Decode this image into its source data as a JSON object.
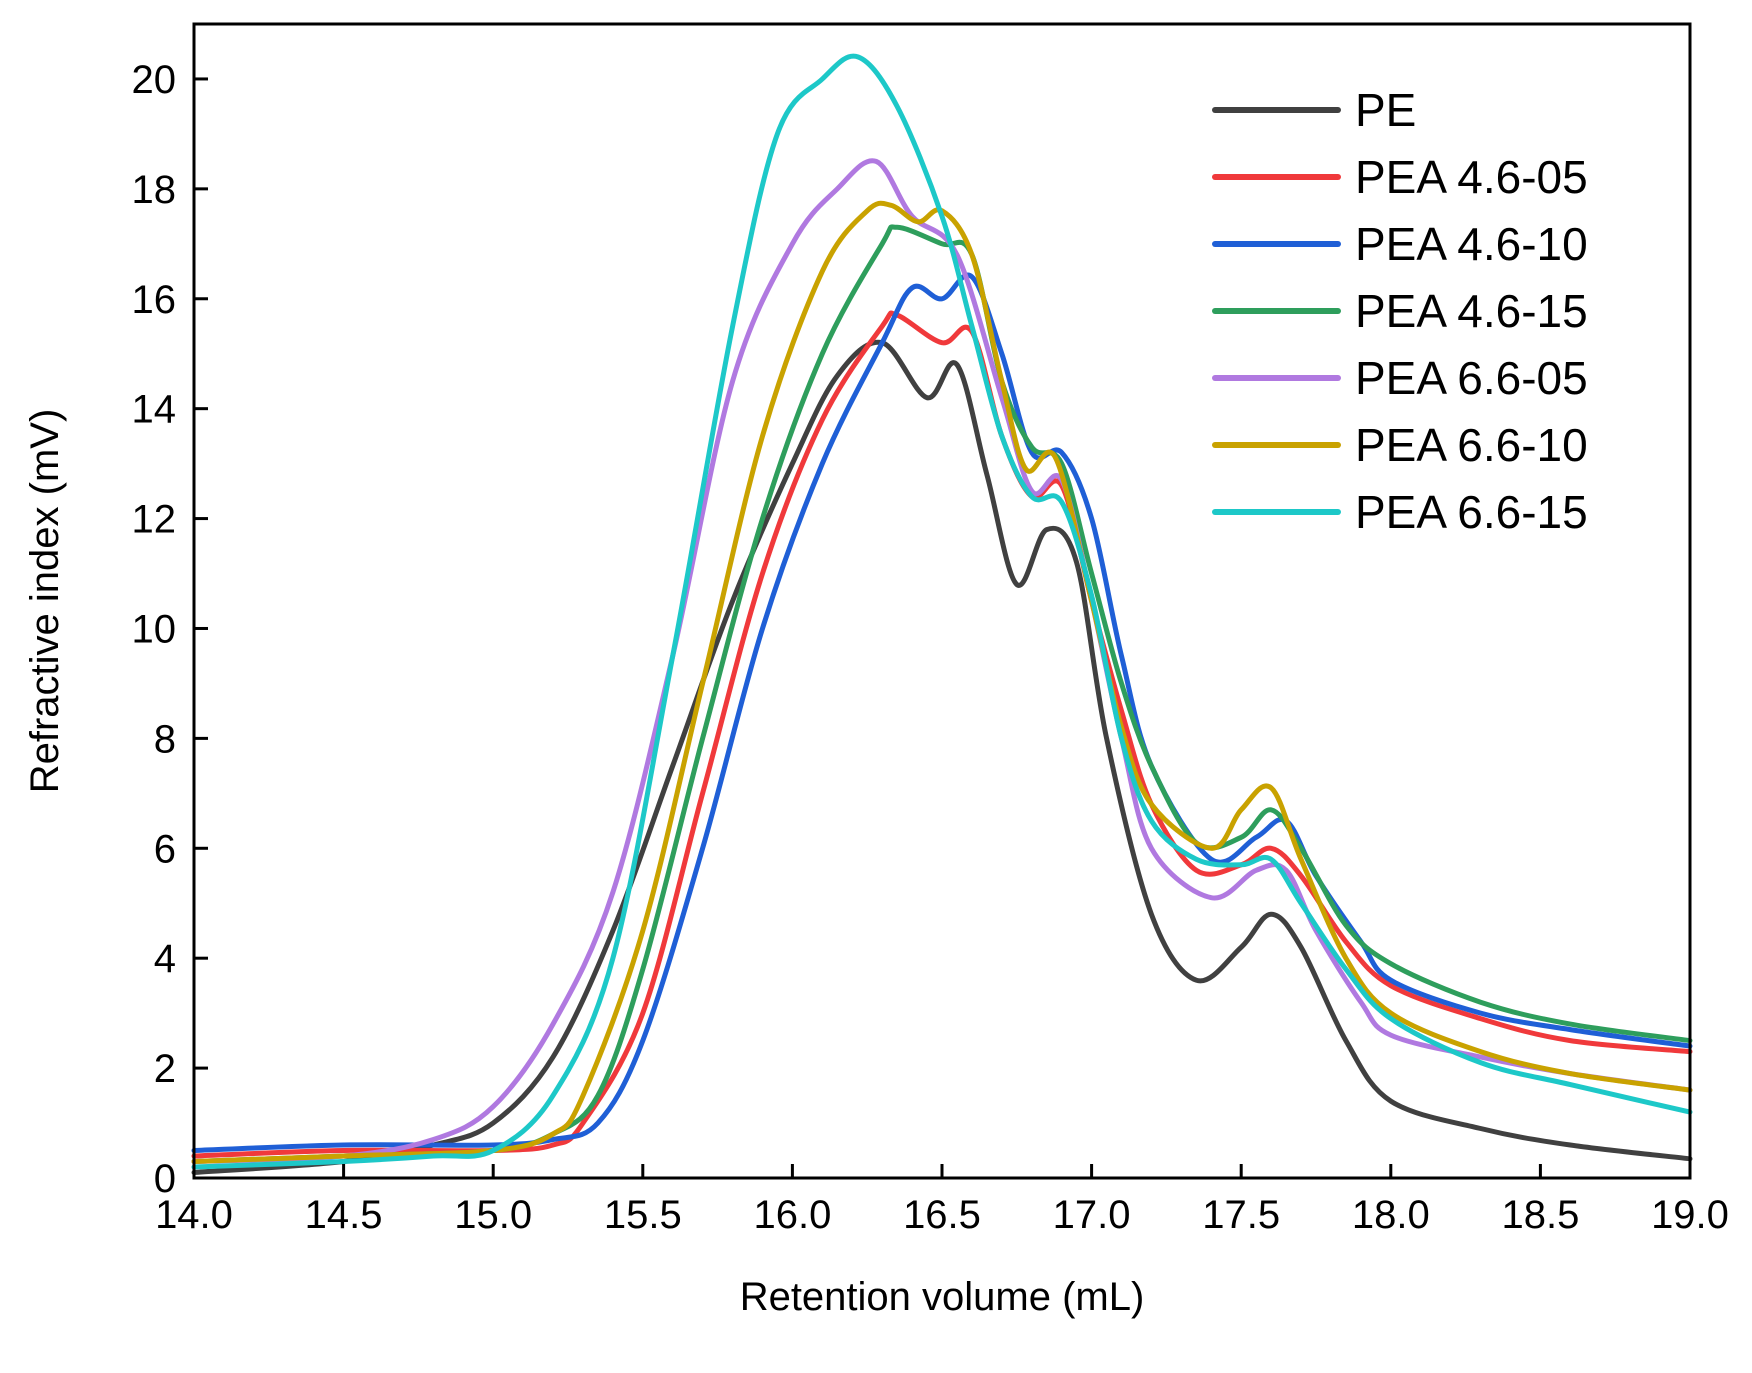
{
  "chart_data": {
    "type": "line",
    "title": "",
    "xlabel": "Retention volume (mL)",
    "ylabel": "Refractive index (mV)",
    "xlim": [
      14.0,
      19.0
    ],
    "ylim": [
      0,
      21
    ],
    "x_ticks": [
      14.0,
      14.5,
      15.0,
      15.5,
      16.0,
      16.5,
      17.0,
      17.5,
      18.0,
      18.5,
      19.0
    ],
    "x_tick_labels": [
      "14.0",
      "14.5",
      "15.0",
      "15.5",
      "16.0",
      "16.5",
      "17.0",
      "17.5",
      "18.0",
      "18.5",
      "19.0"
    ],
    "y_ticks": [
      0,
      2,
      4,
      6,
      8,
      10,
      12,
      14,
      16,
      18,
      20
    ],
    "y_tick_labels": [
      "0",
      "2",
      "4",
      "6",
      "8",
      "10",
      "12",
      "14",
      "16",
      "18",
      "20"
    ],
    "legend_position": "top-right",
    "grid": false,
    "series": [
      {
        "name": "PE",
        "color": "#404040",
        "x": [
          14.0,
          14.5,
          14.8,
          15.0,
          15.2,
          15.4,
          15.6,
          15.8,
          16.0,
          16.15,
          16.3,
          16.45,
          16.55,
          16.65,
          16.75,
          16.85,
          16.95,
          17.05,
          17.2,
          17.35,
          17.5,
          17.6,
          17.7,
          17.85,
          18.0,
          18.3,
          18.6,
          19.0
        ],
        "y": [
          0.1,
          0.3,
          0.6,
          1.0,
          2.2,
          4.5,
          7.5,
          10.5,
          13.0,
          14.6,
          15.2,
          14.2,
          14.8,
          12.8,
          10.8,
          11.8,
          11.2,
          8.0,
          4.8,
          3.6,
          4.2,
          4.8,
          4.2,
          2.5,
          1.4,
          0.9,
          0.6,
          0.35
        ]
      },
      {
        "name": "PEA 4.6-05",
        "color": "#f0393b",
        "x": [
          14.0,
          14.5,
          15.0,
          15.2,
          15.3,
          15.5,
          15.7,
          15.9,
          16.1,
          16.3,
          16.35,
          16.5,
          16.6,
          16.7,
          16.8,
          16.9,
          17.0,
          17.1,
          17.2,
          17.35,
          17.5,
          17.6,
          17.7,
          17.85,
          18.0,
          18.3,
          18.6,
          19.0
        ],
        "y": [
          0.4,
          0.5,
          0.5,
          0.6,
          1.0,
          3.0,
          7.0,
          11.0,
          13.8,
          15.5,
          15.7,
          15.2,
          15.4,
          13.5,
          12.4,
          12.6,
          10.5,
          8.5,
          6.8,
          5.6,
          5.7,
          6.0,
          5.5,
          4.3,
          3.5,
          2.9,
          2.5,
          2.3
        ]
      },
      {
        "name": "PEA 4.6-10",
        "color": "#1f5fd6",
        "x": [
          14.0,
          14.5,
          15.0,
          15.2,
          15.35,
          15.5,
          15.7,
          15.9,
          16.1,
          16.3,
          16.4,
          16.5,
          16.6,
          16.7,
          16.8,
          16.9,
          17.0,
          17.1,
          17.2,
          17.4,
          17.55,
          17.65,
          17.75,
          17.9,
          18.0,
          18.3,
          18.6,
          19.0
        ],
        "y": [
          0.5,
          0.6,
          0.6,
          0.7,
          1.0,
          2.5,
          6.0,
          10.0,
          13.0,
          15.2,
          16.2,
          16.0,
          16.4,
          15.0,
          13.2,
          13.2,
          12.0,
          9.5,
          7.5,
          5.8,
          6.2,
          6.5,
          5.5,
          4.3,
          3.6,
          3.0,
          2.7,
          2.4
        ]
      },
      {
        "name": "PEA 4.6-15",
        "color": "#2e9e5c",
        "x": [
          14.0,
          14.5,
          15.0,
          15.2,
          15.35,
          15.5,
          15.7,
          15.9,
          16.1,
          16.3,
          16.35,
          16.5,
          16.6,
          16.7,
          16.8,
          16.9,
          17.0,
          17.1,
          17.2,
          17.35,
          17.5,
          17.6,
          17.7,
          17.85,
          18.0,
          18.3,
          18.6,
          19.0
        ],
        "y": [
          0.3,
          0.4,
          0.5,
          0.8,
          1.5,
          3.8,
          8.0,
          12.0,
          15.0,
          17.0,
          17.3,
          17.0,
          16.8,
          14.5,
          13.3,
          13.0,
          11.0,
          9.0,
          7.5,
          6.1,
          6.2,
          6.7,
          6.0,
          4.6,
          3.9,
          3.2,
          2.8,
          2.5
        ]
      },
      {
        "name": "PEA 6.6-05",
        "color": "#b079e0",
        "x": [
          14.0,
          14.5,
          14.8,
          15.0,
          15.2,
          15.4,
          15.6,
          15.8,
          16.0,
          16.15,
          16.28,
          16.4,
          16.55,
          16.7,
          16.8,
          16.9,
          17.0,
          17.1,
          17.2,
          17.4,
          17.55,
          17.65,
          17.75,
          17.9,
          18.0,
          18.3,
          18.6,
          19.0
        ],
        "y": [
          0.3,
          0.4,
          0.7,
          1.3,
          2.8,
          5.2,
          9.5,
          14.5,
          17.0,
          18.0,
          18.5,
          17.5,
          16.8,
          14.2,
          12.5,
          12.7,
          10.5,
          8.0,
          6.0,
          5.1,
          5.6,
          5.6,
          4.5,
          3.2,
          2.6,
          2.2,
          1.9,
          1.6
        ]
      },
      {
        "name": "PEA 6.6-10",
        "color": "#c9a200",
        "x": [
          14.0,
          14.5,
          15.0,
          15.2,
          15.3,
          15.5,
          15.7,
          15.9,
          16.1,
          16.25,
          16.33,
          16.42,
          16.5,
          16.6,
          16.7,
          16.78,
          16.88,
          17.0,
          17.1,
          17.2,
          17.4,
          17.5,
          17.6,
          17.7,
          17.85,
          18.0,
          18.3,
          18.6,
          19.0
        ],
        "y": [
          0.3,
          0.4,
          0.5,
          0.8,
          1.5,
          4.5,
          9.0,
          13.5,
          16.5,
          17.6,
          17.7,
          17.4,
          17.6,
          16.8,
          14.5,
          12.9,
          13.1,
          10.5,
          8.2,
          6.8,
          6.0,
          6.7,
          7.1,
          5.8,
          4.0,
          3.0,
          2.3,
          1.9,
          1.6
        ]
      },
      {
        "name": "PEA 6.6-15",
        "color": "#1dc8c8",
        "x": [
          14.0,
          14.5,
          14.8,
          15.0,
          15.2,
          15.4,
          15.6,
          15.8,
          15.95,
          16.1,
          16.22,
          16.35,
          16.5,
          16.6,
          16.7,
          16.8,
          16.9,
          17.0,
          17.1,
          17.2,
          17.35,
          17.5,
          17.6,
          17.7,
          17.85,
          18.0,
          18.3,
          18.6,
          19.0
        ],
        "y": [
          0.2,
          0.3,
          0.4,
          0.5,
          1.5,
          4.0,
          9.5,
          15.5,
          19.0,
          20.0,
          20.4,
          19.5,
          17.5,
          15.5,
          13.5,
          12.4,
          12.3,
          10.6,
          8.0,
          6.5,
          5.8,
          5.7,
          5.8,
          5.0,
          3.8,
          2.9,
          2.1,
          1.7,
          1.2
        ]
      }
    ]
  }
}
